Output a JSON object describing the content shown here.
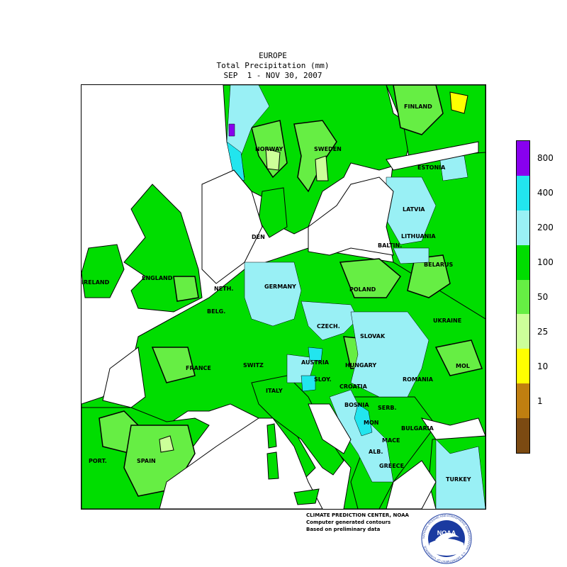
{
  "title": {
    "region": "EUROPE",
    "variable": "Total Precipitation (mm)",
    "period": "SEP  1 - NOV 30, 2007"
  },
  "legend": {
    "levels": [
      {
        "label": "",
        "color": "#7b4a12"
      },
      {
        "label": "1",
        "color": "#c07f10"
      },
      {
        "label": "10",
        "color": "#ffff00"
      },
      {
        "label": "25",
        "color": "#ccff99"
      },
      {
        "label": "50",
        "color": "#66ee44"
      },
      {
        "label": "100",
        "color": "#00dd00"
      },
      {
        "label": "200",
        "color": "#99f0f5"
      },
      {
        "label": "400",
        "color": "#22e5ee"
      },
      {
        "label": "800",
        "color": "#8800ee"
      }
    ]
  },
  "map": {
    "labels": {
      "finland": "FINLAND",
      "norway": "NORWAY",
      "sweden": "SWEDEN",
      "estonia": "ESTONIA",
      "latvia": "LATVIA",
      "lithuania": "LITHUANIA",
      "baltin": "BALTIN.",
      "den": "DEN",
      "ireland": "IRELAND",
      "england": "ENGLAND",
      "germany": "GERMANY",
      "neth": "NETH.",
      "belg": "BELG.",
      "poland": "POLAND",
      "belarus": "BELARUS",
      "czech": "CZECH.",
      "slovak": "SLOVAK",
      "ukraine": "UKRAINE",
      "france": "FRANCE",
      "switz": "SWITZ",
      "austria": "AUSTRIA",
      "hungary": "HUNGARY",
      "mol": "MOL",
      "romania": "ROMANIA",
      "sloy": "SLOY.",
      "croatia": "CROATIA",
      "italy": "ITALY",
      "bosnia": "BOSNIA",
      "serb": "SERB.",
      "mon": "MON",
      "bulgaria": "BULGARIA",
      "mace": "MACE",
      "alb": "ALB.",
      "greece": "GREECE",
      "turkey": "TURKEY",
      "port": "PORT.",
      "spain": "SPAIN"
    }
  },
  "credits": {
    "line1": "CLIMATE PREDICTION CENTER, NOAA",
    "line2": "Computer generated contours",
    "line3": "Based on preliminary data"
  },
  "logo": {
    "text": "NOAA",
    "ring_text": "NATIONAL OCEANIC AND ATMOSPHERIC ADMINISTRATION · U.S. DEPARTMENT OF COMMERCE"
  }
}
